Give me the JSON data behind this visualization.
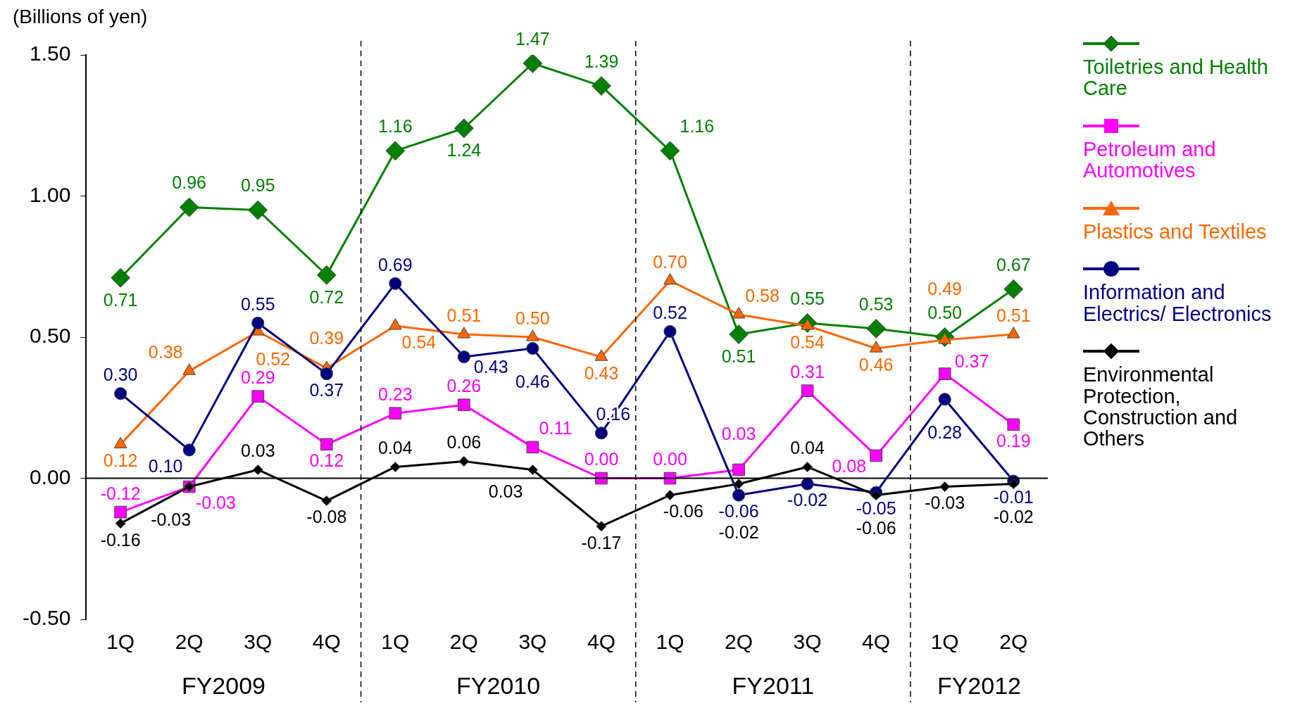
{
  "chart_data": {
    "type": "line",
    "ylabel": "(Billions of yen)",
    "categories": [
      "1Q",
      "2Q",
      "3Q",
      "4Q",
      "1Q",
      "2Q",
      "3Q",
      "4Q",
      "1Q",
      "2Q",
      "3Q",
      "4Q",
      "1Q",
      "2Q"
    ],
    "annotations": [
      "FY2009",
      "FY2010",
      "FY2011",
      "FY2012"
    ],
    "ylim": [
      -0.5,
      1.5
    ],
    "yticks": [
      {
        "value": -0.5,
        "label": "-0.50"
      },
      {
        "value": 0,
        "label": "0.00"
      },
      {
        "value": 0.5,
        "label": "0.50"
      },
      {
        "value": 1,
        "label": "1.00"
      },
      {
        "value": 1.5,
        "label": "1.50"
      }
    ],
    "legend": "right",
    "series": [
      {
        "name": "Toiletries and Health Care",
        "color": "#008000",
        "marker": "diamond",
        "values": [
          0.71,
          0.96,
          0.95,
          0.72,
          1.16,
          1.24,
          1.47,
          1.39,
          1.16,
          0.51,
          0.55,
          0.53,
          0.5,
          0.67
        ],
        "value_labels": [
          "0.71",
          "0.96",
          "0.95",
          "0.72",
          "1.16",
          "1.24",
          "1.47",
          "1.39",
          "1.16",
          "0.51",
          "0.55",
          "0.53",
          "0.50",
          "0.67"
        ]
      },
      {
        "name": "Petroleum and Automotives",
        "color": "#ff00ff",
        "marker": "square",
        "values": [
          -0.12,
          -0.03,
          0.29,
          0.12,
          0.23,
          0.26,
          0.11,
          0.0,
          0.0,
          0.03,
          0.31,
          0.08,
          0.37,
          0.19
        ],
        "value_labels": [
          "-0.12",
          "-0.03",
          "0.29",
          "0.12",
          "0.23",
          "0.26",
          "0.11",
          "0.00",
          "0.00",
          "0.03",
          "0.31",
          "0.08",
          "0.37",
          "0.19"
        ]
      },
      {
        "name": "Plastics and Textiles",
        "color": "#ff6600",
        "marker": "triangle",
        "values": [
          0.12,
          0.38,
          0.52,
          0.39,
          0.54,
          0.51,
          0.5,
          0.43,
          0.7,
          0.58,
          0.54,
          0.46,
          0.49,
          0.51
        ],
        "value_labels": [
          "0.12",
          "0.38",
          "0.52",
          "0.39",
          "0.54",
          "0.51",
          "0.50",
          "0.43",
          "0.70",
          "0.58",
          "0.54",
          "0.46",
          "0.49",
          "0.51"
        ]
      },
      {
        "name": "Information and Electrics/ Electronics",
        "color": "#000080",
        "marker": "circle",
        "values": [
          0.3,
          0.1,
          0.55,
          0.37,
          0.69,
          0.43,
          0.46,
          0.16,
          0.52,
          -0.06,
          -0.02,
          -0.05,
          0.28,
          -0.01
        ],
        "value_labels": [
          "0.30",
          "0.10",
          "0.55",
          "0.37",
          "0.69",
          "0.43",
          "0.46",
          "0.16",
          "0.52",
          "-0.06",
          "-0.02",
          "-0.05",
          "0.28",
          "-0.01"
        ]
      },
      {
        "name": "Environmental Protection, Construction and Others",
        "color": "#000000",
        "marker": "diamond",
        "values": [
          -0.16,
          -0.03,
          0.03,
          -0.08,
          0.04,
          0.06,
          0.03,
          -0.17,
          -0.06,
          -0.02,
          0.04,
          -0.06,
          -0.03,
          -0.02
        ],
        "value_labels": [
          "-0.16",
          "-0.03",
          "0.03",
          "-0.08",
          "0.04",
          "0.06",
          "0.03",
          "-0.17",
          "-0.06",
          "-0.02",
          "0.04",
          "-0.06",
          "-0.03",
          "-0.02"
        ]
      }
    ]
  }
}
